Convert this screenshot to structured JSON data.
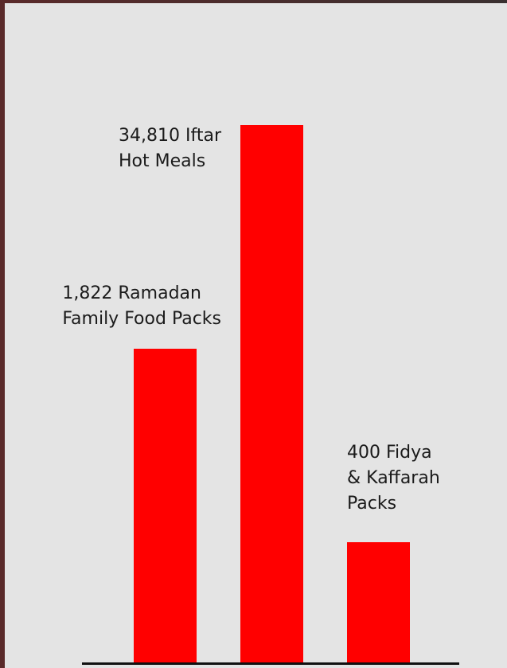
{
  "items": [
    {
      "lines": [
        "1,822 Ramadan",
        "Family Food Packs"
      ]
    },
    {
      "lines": [
        "34,810 Iftar",
        "Hot Meals"
      ]
    },
    {
      "lines": [
        "400 Fidya",
        "& Kaffarah",
        "Packs"
      ]
    }
  ]
}
